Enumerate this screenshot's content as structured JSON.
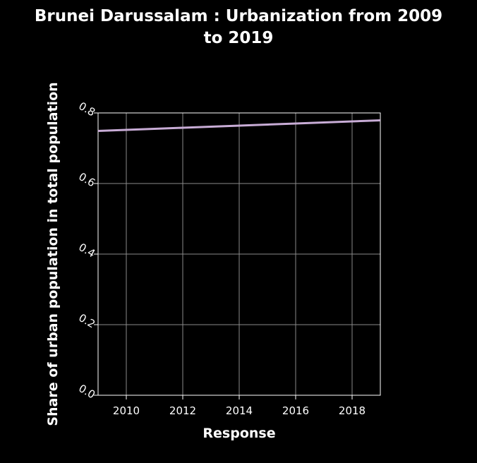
{
  "chart_data": {
    "type": "line",
    "title": "Brunei Darussalam : Urbanization from 2009 to 2019",
    "title_lines": [
      "Brunei Darussalam : Urbanization from 2009",
      "to 2019"
    ],
    "xlabel": "Response",
    "ylabel": "Share of urban population in total population",
    "xlim": [
      2009,
      2019
    ],
    "ylim": [
      0,
      0.8
    ],
    "xticks": [
      2010,
      2012,
      2014,
      2016,
      2018
    ],
    "xtick_labels": [
      "2010",
      "2012",
      "2014",
      "2016",
      "2018"
    ],
    "yticks": [
      0,
      0.2,
      0.4,
      0.6,
      0.8
    ],
    "ytick_labels": [
      "0.0",
      "0.2",
      "0.4",
      "0.6",
      "0.8"
    ],
    "grid": true,
    "x": [
      2009,
      2010,
      2011,
      2012,
      2013,
      2014,
      2015,
      2016,
      2017,
      2018,
      2019
    ],
    "series": [
      {
        "values": [
          0.749,
          0.752,
          0.755,
          0.758,
          0.761,
          0.764,
          0.767,
          0.77,
          0.773,
          0.776,
          0.779
        ],
        "color": "#c8acd6"
      }
    ]
  }
}
